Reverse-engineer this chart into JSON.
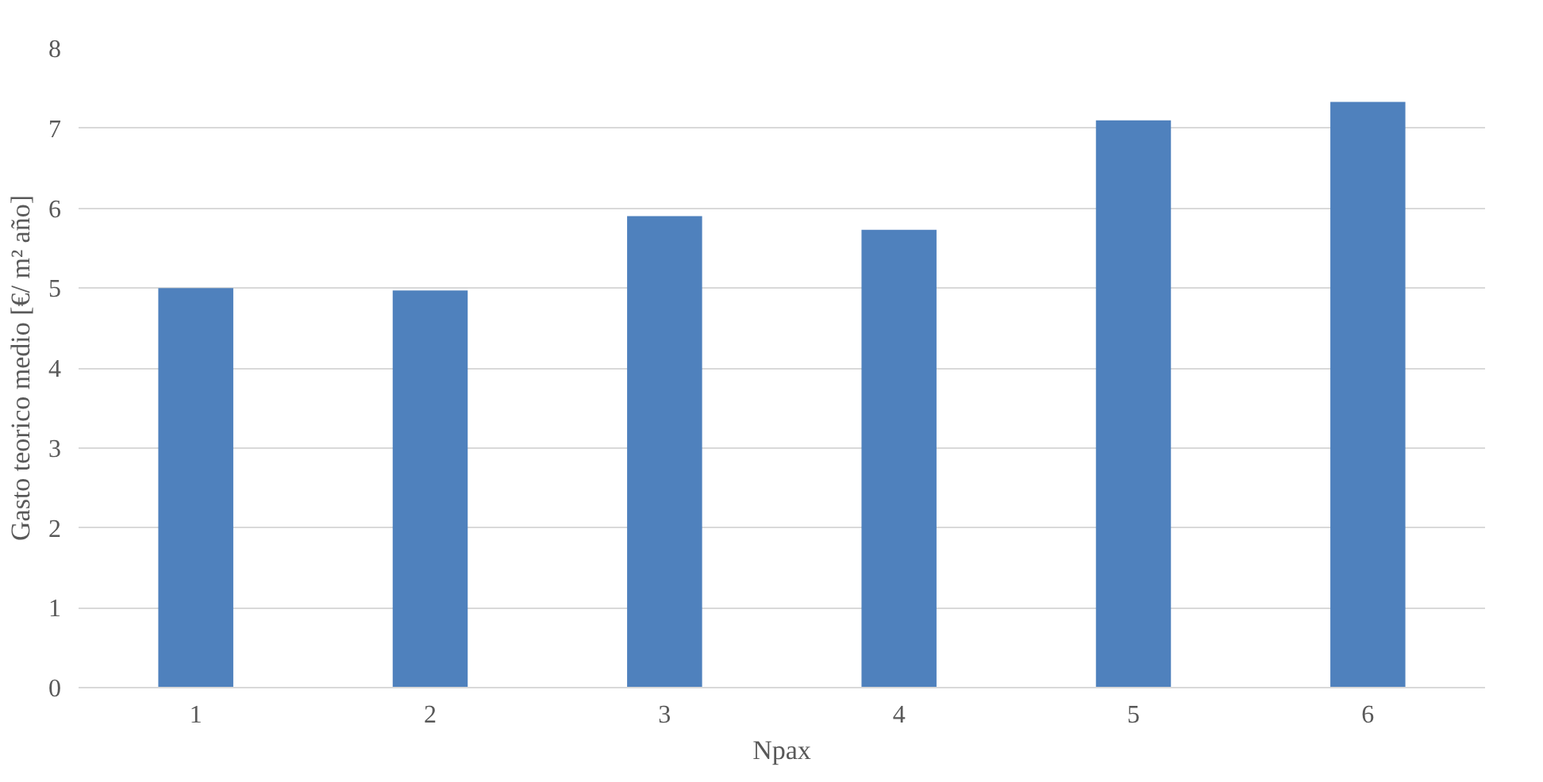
{
  "chart_data": {
    "type": "bar",
    "xlabel": "Npax",
    "ylabel": "Gasto teorico medio [€/ m² año]",
    "categories": [
      "1",
      "2",
      "3",
      "4",
      "5",
      "6"
    ],
    "values": [
      5.0,
      4.97,
      5.9,
      5.73,
      7.1,
      7.33
    ],
    "color": "#4f81bd",
    "ylim": [
      0,
      8
    ],
    "yticks": [
      0,
      1,
      2,
      3,
      4,
      5,
      6,
      7,
      8
    ],
    "grid": "y"
  }
}
